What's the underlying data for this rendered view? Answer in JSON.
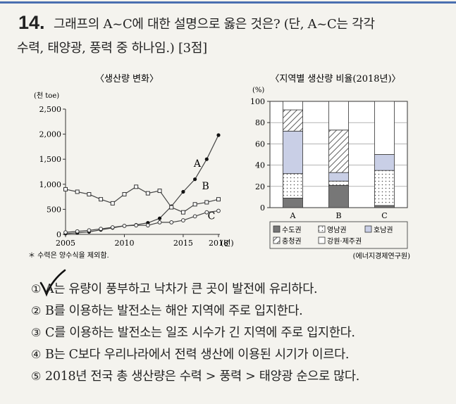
{
  "question": {
    "number": "14.",
    "line1": "그래프의 A~C에 대한 설명으로 옳은 것은? (단, A~C는 각각",
    "line2": "수력, 태양광, 풍력 중 하나임.) [3점]"
  },
  "footnote": "＊ 수력은 양수식을 제외함.",
  "source": "(에너지경제연구원)",
  "options": [
    {
      "num": "①",
      "text": "A는 유량이 풍부하고 낙차가 큰 곳이 발전에 유리하다."
    },
    {
      "num": "②",
      "text": "B를 이용하는 발전소는 해안 지역에 주로 입지한다."
    },
    {
      "num": "③",
      "text": "C를 이용하는 발전소는 일조 시수가 긴 지역에 주로 입지한다."
    },
    {
      "num": "④",
      "text": "B는 C보다 우리나라에서 전력 생산에 이용된 시기가 이르다."
    },
    {
      "num": "⑤",
      "text": "2018년 전국 총 생산량은 수력 > 풍력 > 태양광 순으로 많다."
    }
  ],
  "chart_data": [
    {
      "type": "line",
      "title": "〈생산량 변화〉",
      "ylabel": "(천 toe)",
      "xlabel": "(년)",
      "xlim": [
        2005,
        2018
      ],
      "ylim": [
        0,
        2500
      ],
      "x_ticks": [
        "2005",
        "2010",
        "2015",
        "2018"
      ],
      "y_ticks": [
        "0",
        "500",
        "1,000",
        "1,500",
        "2,000",
        "2,500"
      ],
      "x": [
        2005,
        2006,
        2007,
        2008,
        2009,
        2010,
        2011,
        2012,
        2013,
        2014,
        2015,
        2016,
        2017,
        2018
      ],
      "series": [
        {
          "name": "A",
          "marker": "filled-circle",
          "values": [
            15,
            30,
            50,
            90,
            130,
            170,
            190,
            230,
            320,
            560,
            850,
            1100,
            1500,
            1980
          ]
        },
        {
          "name": "B",
          "marker": "open-square",
          "values": [
            900,
            850,
            800,
            700,
            620,
            800,
            950,
            820,
            870,
            540,
            440,
            600,
            640,
            700
          ]
        },
        {
          "name": "C",
          "marker": "open-circle",
          "values": [
            40,
            60,
            80,
            110,
            140,
            170,
            180,
            180,
            240,
            240,
            280,
            360,
            440,
            470
          ]
        }
      ]
    },
    {
      "type": "bar",
      "stacked": true,
      "title": "〈지역별 생산량 비율(2018년)〉",
      "ylabel": "(%)",
      "ylim": [
        0,
        100
      ],
      "y_ticks": [
        "0",
        "20",
        "40",
        "60",
        "80",
        "100"
      ],
      "categories": [
        "A",
        "B",
        "C"
      ],
      "series": [
        {
          "name": "수도권",
          "pattern": "dark-gray",
          "values": [
            9,
            21,
            2
          ]
        },
        {
          "name": "영남권",
          "pattern": "dotted",
          "values": [
            23,
            4,
            33
          ]
        },
        {
          "name": "호남권",
          "pattern": "light-blue",
          "values": [
            40,
            8,
            15
          ]
        },
        {
          "name": "충청권",
          "pattern": "hatched",
          "values": [
            20,
            40,
            0
          ]
        },
        {
          "name": "강원·제주권",
          "pattern": "white",
          "values": [
            8,
            27,
            50
          ]
        }
      ]
    }
  ]
}
